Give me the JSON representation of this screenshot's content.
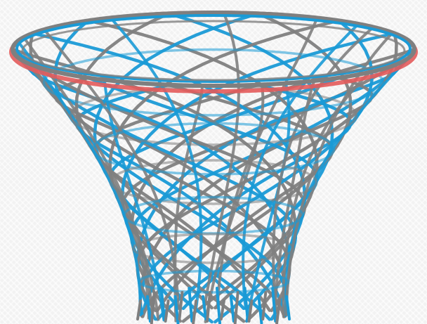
{
  "image": {
    "subject": "basketball-net",
    "colors": {
      "background": "#f2f2f2",
      "net_blue": "#1a9ad6",
      "net_gray": "#7f7f7f",
      "rim_red": "#e35b5b"
    }
  }
}
